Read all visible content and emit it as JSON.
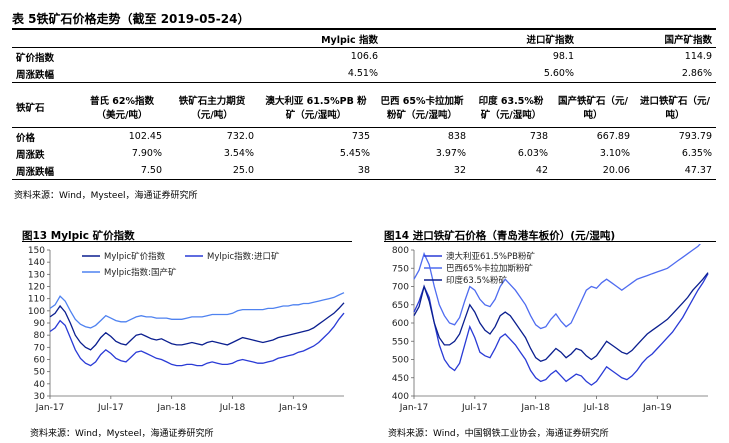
{
  "table_title": "表 5铁矿石价格走势（截至 2019-05-24）",
  "table1": {
    "headers": [
      "Mylpic 指数",
      "进口矿指数",
      "国产矿指数"
    ],
    "rows": [
      {
        "label": "矿价指数",
        "values": [
          "106.6",
          "98.1",
          "114.9"
        ]
      },
      {
        "label": "周涨跌幅",
        "values": [
          "4.51%",
          "5.60%",
          "2.86%"
        ]
      }
    ]
  },
  "table2": {
    "corner": "铁矿石",
    "headers": [
      "普氏 62%指数（美元/吨）",
      "铁矿石主力期货（元/吨）",
      "澳大利亚 61.5%PB 粉矿（元/湿吨）",
      "巴西 65%卡拉加斯粉矿（元/湿吨）",
      "印度 63.5%粉矿（元/湿吨）",
      "国产铁矿石（元/吨）",
      "进口铁矿石（元/吨）"
    ],
    "rows": [
      {
        "label": "价格",
        "values": [
          "102.45",
          "732.0",
          "735",
          "838",
          "738",
          "667.89",
          "793.79"
        ]
      },
      {
        "label": "周涨跌",
        "values": [
          "7.90%",
          "3.54%",
          "5.45%",
          "3.97%",
          "6.03%",
          "3.10%",
          "6.35%"
        ]
      },
      {
        "label": "周涨跌幅",
        "values": [
          "7.50",
          "25.0",
          "38",
          "32",
          "42",
          "20.06",
          "47.37"
        ]
      }
    ]
  },
  "table_source": "资料来源：Wind，Mysteel，海通证券研究所",
  "chart_data": [
    {
      "type": "line",
      "title": "图13 Mylpic 矿价指数",
      "x_ticks": [
        "Jan-17",
        "Jul-17",
        "Jan-18",
        "Jul-18",
        "Jan-19"
      ],
      "ylim": [
        30,
        150
      ],
      "y_ticks": [
        30,
        40,
        50,
        60,
        70,
        80,
        90,
        100,
        110,
        120,
        130,
        140,
        150
      ],
      "legend": "top-left",
      "series": [
        {
          "name": "Mylpic矿价指数",
          "color": "#0b1f8f",
          "x": [
            0,
            0.5,
            1,
            1.5,
            2,
            2.5,
            3,
            3.5,
            4,
            4.5,
            5,
            5.5,
            6,
            6.5,
            7,
            7.5,
            8,
            8.5,
            9,
            9.5,
            10,
            10.5,
            11,
            11.5,
            12,
            12.5,
            13,
            13.5,
            14,
            14.5,
            15,
            15.5,
            16,
            16.5,
            17,
            17.5,
            18,
            18.5,
            19,
            19.5,
            20,
            20.5,
            21,
            21.5,
            22,
            22.5,
            23,
            23.5,
            24,
            24.5,
            25,
            25.5,
            26,
            26.5,
            27,
            27.5,
            28,
            28.5,
            29
          ],
          "values": [
            95,
            98,
            104,
            99,
            90,
            80,
            74,
            70,
            68,
            72,
            78,
            82,
            79,
            75,
            73,
            72,
            76,
            80,
            81,
            79,
            77,
            76,
            77,
            75,
            73,
            72,
            72,
            73,
            74,
            73,
            72,
            74,
            75,
            74,
            73,
            72,
            74,
            76,
            78,
            77,
            76,
            75,
            74,
            75,
            76,
            78,
            79,
            80,
            81,
            82,
            83,
            84,
            86,
            89,
            92,
            95,
            98,
            102,
            106.6
          ]
        },
        {
          "name": "Mylpic指数:进口矿",
          "color": "#2a3bd6",
          "x": [
            0,
            0.5,
            1,
            1.5,
            2,
            2.5,
            3,
            3.5,
            4,
            4.5,
            5,
            5.5,
            6,
            6.5,
            7,
            7.5,
            8,
            8.5,
            9,
            9.5,
            10,
            10.5,
            11,
            11.5,
            12,
            12.5,
            13,
            13.5,
            14,
            14.5,
            15,
            15.5,
            16,
            16.5,
            17,
            17.5,
            18,
            18.5,
            19,
            19.5,
            20,
            20.5,
            21,
            21.5,
            22,
            22.5,
            23,
            23.5,
            24,
            24.5,
            25,
            25.5,
            26,
            26.5,
            27,
            27.5,
            28,
            28.5,
            29
          ],
          "values": [
            83,
            86,
            92,
            88,
            78,
            68,
            61,
            57,
            55,
            58,
            64,
            68,
            65,
            61,
            59,
            58,
            62,
            66,
            67,
            65,
            63,
            61,
            60,
            58,
            56,
            55,
            55,
            56,
            56,
            55,
            55,
            57,
            58,
            57,
            56,
            56,
            57,
            59,
            60,
            59,
            58,
            57,
            57,
            58,
            59,
            61,
            62,
            63,
            64,
            66,
            67,
            69,
            71,
            74,
            78,
            82,
            87,
            93,
            98.1
          ]
        },
        {
          "name": "Mylpic指数:国产矿",
          "color": "#4f82f0",
          "x": [
            0,
            0.5,
            1,
            1.5,
            2,
            2.5,
            3,
            3.5,
            4,
            4.5,
            5,
            5.5,
            6,
            6.5,
            7,
            7.5,
            8,
            8.5,
            9,
            9.5,
            10,
            10.5,
            11,
            11.5,
            12,
            12.5,
            13,
            13.5,
            14,
            14.5,
            15,
            15.5,
            16,
            16.5,
            17,
            17.5,
            18,
            18.5,
            19,
            19.5,
            20,
            20.5,
            21,
            21.5,
            22,
            22.5,
            23,
            23.5,
            24,
            24.5,
            25,
            25.5,
            26,
            26.5,
            27,
            27.5,
            28,
            28.5,
            29
          ],
          "values": [
            102,
            105,
            112,
            108,
            100,
            93,
            89,
            87,
            86,
            88,
            92,
            96,
            94,
            92,
            91,
            91,
            93,
            95,
            96,
            95,
            95,
            94,
            94,
            94,
            93,
            93,
            93,
            94,
            95,
            95,
            95,
            96,
            97,
            97,
            97,
            97,
            98,
            100,
            101,
            101,
            101,
            101,
            101,
            102,
            102,
            103,
            104,
            104,
            105,
            105,
            106,
            106,
            107,
            108,
            109,
            110,
            111,
            113,
            114.9
          ]
        }
      ]
    },
    {
      "type": "line",
      "title": "图14 进口铁矿石价格（青岛港车板价）(元/湿吨)",
      "x_ticks": [
        "Jan-17",
        "Jul-17",
        "Jan-18",
        "Jul-18",
        "Jan-19"
      ],
      "ylim": [
        400,
        800
      ],
      "y_ticks": [
        400,
        450,
        500,
        550,
        600,
        650,
        700,
        750,
        800
      ],
      "legend": "top-left",
      "series": [
        {
          "name": "澳大利亚61.5%PB粉矿",
          "color": "#2a3bd6",
          "x": [
            0,
            0.5,
            1,
            1.5,
            2,
            2.5,
            3,
            3.5,
            4,
            4.5,
            5,
            5.5,
            6,
            6.5,
            7,
            7.5,
            8,
            8.5,
            9,
            9.5,
            10,
            10.5,
            11,
            11.5,
            12,
            12.5,
            13,
            13.5,
            14,
            14.5,
            15,
            15.5,
            16,
            16.5,
            17,
            17.5,
            18,
            18.5,
            19,
            19.5,
            20,
            20.5,
            21,
            21.5,
            22,
            22.5,
            23,
            23.5,
            24,
            24.5,
            25,
            25.5,
            26,
            26.5,
            27,
            27.5,
            28,
            28.5,
            29
          ],
          "values": [
            630,
            660,
            700,
            670,
            600,
            540,
            500,
            480,
            470,
            490,
            540,
            590,
            560,
            520,
            510,
            505,
            530,
            560,
            570,
            555,
            540,
            520,
            500,
            470,
            450,
            440,
            445,
            460,
            470,
            455,
            440,
            450,
            460,
            455,
            440,
            430,
            440,
            460,
            480,
            470,
            460,
            450,
            445,
            455,
            470,
            490,
            505,
            515,
            530,
            545,
            560,
            575,
            595,
            615,
            640,
            665,
            690,
            710,
            735
          ]
        },
        {
          "name": "巴西65%卡拉加斯粉矿",
          "color": "#4f6cf0",
          "x": [
            0,
            0.5,
            1,
            1.5,
            2,
            2.5,
            3,
            3.5,
            4,
            4.5,
            5,
            5.5,
            6,
            6.5,
            7,
            7.5,
            8,
            8.5,
            9,
            9.5,
            10,
            10.5,
            11,
            11.5,
            12,
            12.5,
            13,
            13.5,
            14,
            14.5,
            15,
            15.5,
            16,
            16.5,
            17,
            17.5,
            18,
            18.5,
            19,
            19.5,
            20,
            20.5,
            21,
            21.5,
            22,
            22.5,
            23,
            23.5,
            24,
            24.5,
            25,
            25.5,
            26,
            26.5,
            27,
            27.5,
            28,
            28.5,
            29
          ],
          "values": [
            720,
            745,
            790,
            760,
            700,
            650,
            620,
            600,
            595,
            615,
            660,
            700,
            690,
            665,
            650,
            645,
            665,
            700,
            720,
            705,
            690,
            670,
            650,
            620,
            595,
            585,
            590,
            610,
            625,
            605,
            590,
            600,
            630,
            660,
            690,
            700,
            695,
            710,
            720,
            710,
            700,
            690,
            700,
            710,
            720,
            725,
            730,
            735,
            740,
            745,
            750,
            760,
            770,
            780,
            790,
            800,
            810,
            825,
            838
          ]
        },
        {
          "name": "印度63.5%粉矿",
          "color": "#0b1f8f",
          "x": [
            0,
            0.5,
            1,
            1.5,
            2,
            2.5,
            3,
            3.5,
            4,
            4.5,
            5,
            5.5,
            6,
            6.5,
            7,
            7.5,
            8,
            8.5,
            9,
            9.5,
            10,
            10.5,
            11,
            11.5,
            12,
            12.5,
            13,
            13.5,
            14,
            14.5,
            15,
            15.5,
            16,
            16.5,
            17,
            17.5,
            18,
            18.5,
            19,
            19.5,
            20,
            20.5,
            21,
            21.5,
            22,
            22.5,
            23,
            23.5,
            24,
            24.5,
            25,
            25.5,
            26,
            26.5,
            27,
            27.5,
            28,
            28.5,
            29
          ],
          "values": [
            620,
            645,
            700,
            660,
            600,
            560,
            540,
            540,
            550,
            570,
            610,
            650,
            630,
            600,
            580,
            570,
            590,
            620,
            630,
            620,
            600,
            580,
            560,
            530,
            505,
            495,
            500,
            515,
            530,
            520,
            505,
            515,
            530,
            525,
            510,
            500,
            510,
            530,
            550,
            540,
            530,
            520,
            515,
            525,
            540,
            555,
            570,
            580,
            590,
            600,
            610,
            625,
            640,
            655,
            670,
            690,
            705,
            720,
            738
          ]
        }
      ]
    }
  ],
  "chart1_source": "资料来源：Wind，Mysteel，海通证券研究所",
  "chart2_source": "资料来源：Wind，中国钢铁工业协会，海通证券研究所"
}
